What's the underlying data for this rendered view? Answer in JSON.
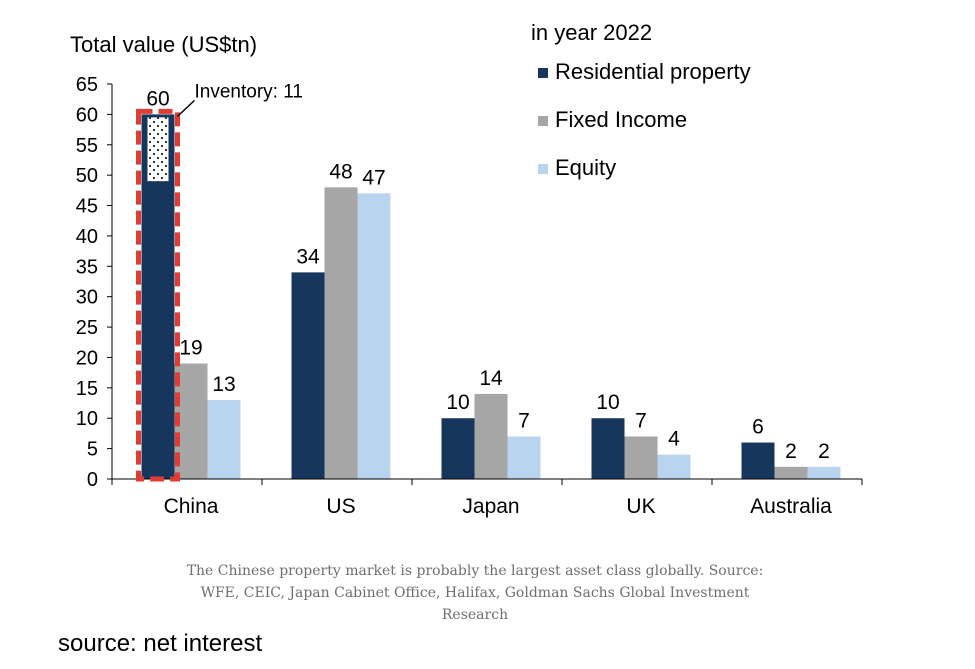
{
  "chart_data": {
    "type": "bar",
    "title": "in year 2022",
    "ylabel": "Total value (US$tn)",
    "xlabel": "",
    "ylim": [
      0,
      65
    ],
    "yticks": [
      0,
      5,
      10,
      15,
      20,
      25,
      30,
      35,
      40,
      45,
      50,
      55,
      60,
      65
    ],
    "categories": [
      "China",
      "US",
      "Japan",
      "UK",
      "Australia"
    ],
    "series": [
      {
        "name": "Residential property",
        "color": "#17365d",
        "values": [
          60,
          34,
          10,
          10,
          6
        ],
        "labels": [
          "60",
          "34",
          "10",
          "10",
          "6"
        ]
      },
      {
        "name": "Fixed Income",
        "color": "#a6a6a6",
        "values": [
          19,
          48,
          14,
          7,
          2
        ],
        "labels": [
          "19",
          "48",
          "14",
          "7",
          "2"
        ]
      },
      {
        "name": "Equity",
        "color": "#b8d4ee",
        "values": [
          13,
          47,
          7,
          4,
          2
        ],
        "labels": [
          "13",
          "47",
          "7",
          "4",
          "2"
        ]
      }
    ],
    "legend_position": "top-right",
    "annotation": {
      "text": "Inventory: 11",
      "category": "China",
      "value": 11,
      "highlight_color": "#e03c31"
    }
  },
  "caption": "The Chinese property market is probably the largest asset class globally. Source: WFE, CEIC, Japan Cabinet Office, Halifax, Goldman Sachs Global Investment Research",
  "source_note": "source: net interest"
}
